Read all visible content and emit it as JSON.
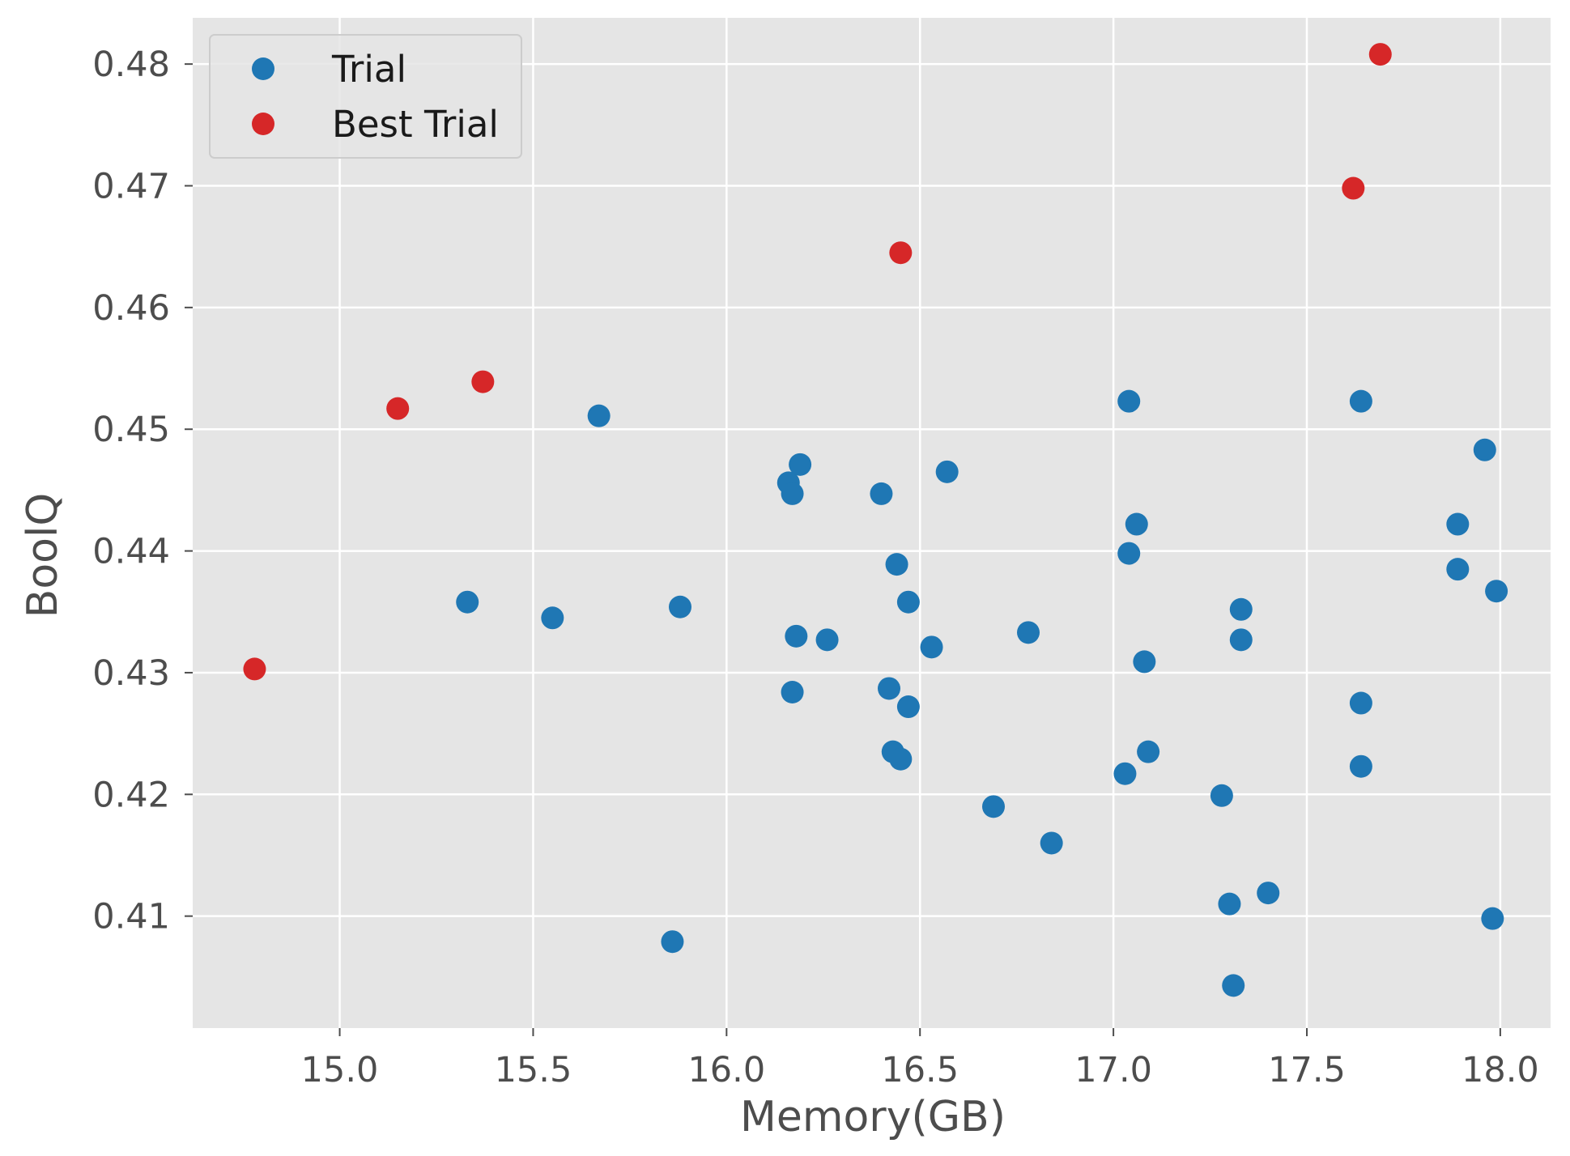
{
  "chart_data": {
    "type": "scatter",
    "title": "",
    "xlabel": "Memory(GB)",
    "ylabel": "BoolQ",
    "xlim": [
      14.62,
      18.13
    ],
    "ylim": [
      0.4008,
      0.4838
    ],
    "xticks": [
      15.0,
      15.5,
      16.0,
      16.5,
      17.0,
      17.5,
      18.0
    ],
    "yticks": [
      0.41,
      0.42,
      0.43,
      0.44,
      0.45,
      0.46,
      0.47,
      0.48
    ],
    "xtick_labels": [
      "15.0",
      "15.5",
      "16.0",
      "16.5",
      "17.0",
      "17.5",
      "18.0"
    ],
    "ytick_labels": [
      "0.41",
      "0.42",
      "0.43",
      "0.44",
      "0.45",
      "0.46",
      "0.47",
      "0.48"
    ],
    "grid": true,
    "legend_position": "top-left",
    "background_color": "#e5e5e5",
    "grid_color": "#ffffff",
    "series": [
      {
        "name": "Trial",
        "color": "#1f77b4",
        "points": [
          [
            15.67,
            0.4511
          ],
          [
            15.33,
            0.4358
          ],
          [
            15.55,
            0.4345
          ],
          [
            15.88,
            0.4354
          ],
          [
            15.86,
            0.4079
          ],
          [
            16.16,
            0.4456
          ],
          [
            16.17,
            0.4447
          ],
          [
            16.19,
            0.4471
          ],
          [
            16.18,
            0.433
          ],
          [
            16.17,
            0.4284
          ],
          [
            16.26,
            0.4327
          ],
          [
            16.4,
            0.4447
          ],
          [
            16.44,
            0.4389
          ],
          [
            16.47,
            0.4358
          ],
          [
            16.57,
            0.4465
          ],
          [
            16.42,
            0.4287
          ],
          [
            16.47,
            0.4272
          ],
          [
            16.43,
            0.4235
          ],
          [
            16.45,
            0.4229
          ],
          [
            16.53,
            0.4321
          ],
          [
            16.69,
            0.419
          ],
          [
            16.78,
            0.4333
          ],
          [
            16.84,
            0.416
          ],
          [
            17.04,
            0.4523
          ],
          [
            17.06,
            0.4422
          ],
          [
            17.04,
            0.4398
          ],
          [
            17.08,
            0.4309
          ],
          [
            17.09,
            0.4235
          ],
          [
            17.03,
            0.4217
          ],
          [
            17.28,
            0.4199
          ],
          [
            17.33,
            0.4352
          ],
          [
            17.33,
            0.4327
          ],
          [
            17.3,
            0.411
          ],
          [
            17.4,
            0.4119
          ],
          [
            17.31,
            0.4043
          ],
          [
            17.64,
            0.4523
          ],
          [
            17.64,
            0.4275
          ],
          [
            17.64,
            0.4223
          ],
          [
            17.96,
            0.4483
          ],
          [
            17.89,
            0.4422
          ],
          [
            17.89,
            0.4385
          ],
          [
            17.99,
            0.4367
          ],
          [
            17.98,
            0.4098
          ]
        ]
      },
      {
        "name": "Best Trial",
        "color": "#d62728",
        "points": [
          [
            14.78,
            0.4303
          ],
          [
            15.15,
            0.4517
          ],
          [
            15.37,
            0.4539
          ],
          [
            16.45,
            0.4645
          ],
          [
            17.62,
            0.4698
          ],
          [
            17.69,
            0.4808
          ]
        ]
      }
    ]
  }
}
